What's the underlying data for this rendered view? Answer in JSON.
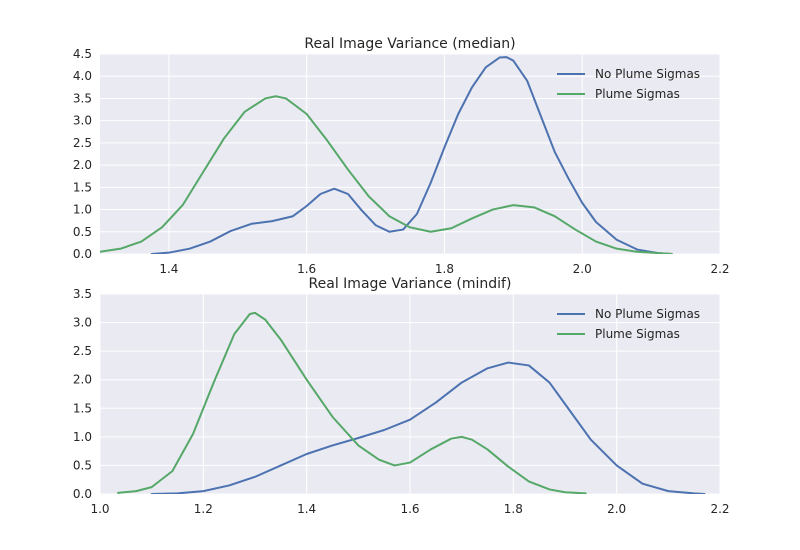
{
  "chart_data": [
    {
      "type": "line",
      "title": "Real Image Variance (median)",
      "xlim": [
        1.3,
        2.2
      ],
      "ylim": [
        0,
        4.5
      ],
      "xticks": [
        "1.4",
        "1.6",
        "1.8",
        "2.0",
        "2.2"
      ],
      "yticks": [
        "0.0",
        "0.5",
        "1.0",
        "1.5",
        "2.0",
        "2.5",
        "3.0",
        "3.5",
        "4.0",
        "4.5"
      ],
      "grid": true,
      "legend": "top-right",
      "series": [
        {
          "name": "No Plume Sigmas",
          "color": "#4C72B0",
          "x": [
            1.375,
            1.4,
            1.43,
            1.46,
            1.49,
            1.52,
            1.55,
            1.58,
            1.6,
            1.62,
            1.64,
            1.66,
            1.68,
            1.7,
            1.72,
            1.74,
            1.76,
            1.78,
            1.8,
            1.82,
            1.84,
            1.86,
            1.88,
            1.89,
            1.9,
            1.92,
            1.94,
            1.96,
            1.98,
            2.0,
            2.02,
            2.05,
            2.08,
            2.11,
            2.13
          ],
          "y": [
            0.0,
            0.03,
            0.12,
            0.28,
            0.52,
            0.68,
            0.74,
            0.85,
            1.08,
            1.35,
            1.47,
            1.35,
            0.98,
            0.65,
            0.5,
            0.55,
            0.9,
            1.6,
            2.4,
            3.15,
            3.75,
            4.2,
            4.42,
            4.43,
            4.35,
            3.9,
            3.1,
            2.3,
            1.7,
            1.15,
            0.72,
            0.32,
            0.1,
            0.02,
            0.0
          ]
        },
        {
          "name": "Plume Sigmas",
          "color": "#55A868",
          "x": [
            1.3,
            1.33,
            1.36,
            1.39,
            1.42,
            1.45,
            1.48,
            1.51,
            1.54,
            1.555,
            1.57,
            1.6,
            1.63,
            1.66,
            1.69,
            1.72,
            1.75,
            1.78,
            1.81,
            1.84,
            1.87,
            1.9,
            1.93,
            1.96,
            1.99,
            2.02,
            2.05,
            2.08,
            2.11,
            2.13
          ],
          "y": [
            0.05,
            0.12,
            0.28,
            0.6,
            1.1,
            1.85,
            2.6,
            3.2,
            3.5,
            3.55,
            3.5,
            3.15,
            2.55,
            1.9,
            1.3,
            0.85,
            0.6,
            0.5,
            0.58,
            0.8,
            1.0,
            1.1,
            1.05,
            0.85,
            0.55,
            0.28,
            0.12,
            0.05,
            0.02,
            0.0
          ]
        }
      ]
    },
    {
      "type": "line",
      "title": "Real Image Variance (mindif)",
      "xlim": [
        1.0,
        2.2
      ],
      "ylim": [
        0,
        3.5
      ],
      "xticks": [
        "1.0",
        "1.2",
        "1.4",
        "1.6",
        "1.8",
        "2.0",
        "2.2"
      ],
      "yticks": [
        "0.0",
        "0.5",
        "1.0",
        "1.5",
        "2.0",
        "2.5",
        "3.0",
        "3.5"
      ],
      "grid": true,
      "legend": "top-right",
      "series": [
        {
          "name": "No Plume Sigmas",
          "color": "#4C72B0",
          "x": [
            1.1,
            1.15,
            1.2,
            1.25,
            1.3,
            1.35,
            1.4,
            1.45,
            1.5,
            1.55,
            1.6,
            1.65,
            1.7,
            1.75,
            1.79,
            1.83,
            1.87,
            1.91,
            1.95,
            2.0,
            2.05,
            2.1,
            2.15,
            2.17
          ],
          "y": [
            0.0,
            0.01,
            0.05,
            0.15,
            0.3,
            0.5,
            0.7,
            0.85,
            0.98,
            1.12,
            1.3,
            1.6,
            1.95,
            2.2,
            2.3,
            2.25,
            1.95,
            1.45,
            0.95,
            0.5,
            0.18,
            0.05,
            0.01,
            0.0
          ]
        },
        {
          "name": "Plume Sigmas",
          "color": "#55A868",
          "x": [
            1.035,
            1.07,
            1.1,
            1.14,
            1.18,
            1.22,
            1.26,
            1.29,
            1.3,
            1.32,
            1.35,
            1.4,
            1.45,
            1.5,
            1.54,
            1.57,
            1.6,
            1.64,
            1.68,
            1.7,
            1.72,
            1.75,
            1.79,
            1.83,
            1.87,
            1.9,
            1.94
          ],
          "y": [
            0.02,
            0.05,
            0.12,
            0.4,
            1.05,
            1.95,
            2.8,
            3.15,
            3.17,
            3.05,
            2.7,
            2.0,
            1.35,
            0.85,
            0.6,
            0.5,
            0.55,
            0.78,
            0.97,
            1.0,
            0.95,
            0.78,
            0.48,
            0.22,
            0.08,
            0.03,
            0.01
          ]
        }
      ]
    }
  ]
}
